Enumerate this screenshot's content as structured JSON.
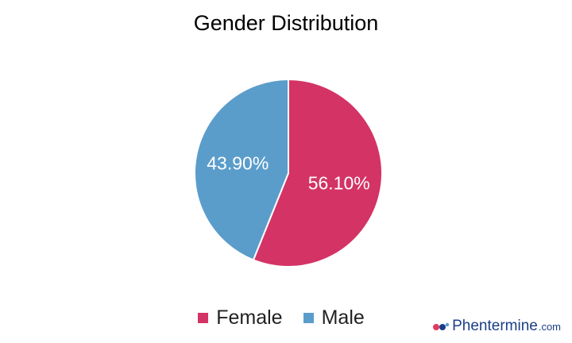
{
  "chart_data": {
    "type": "pie",
    "title": "Gender Distribution",
    "slices": [
      {
        "label": "Female",
        "value": 56.1,
        "display": "56.10%",
        "color": "#d43366"
      },
      {
        "label": "Male",
        "value": 43.9,
        "display": "43.90%",
        "color": "#5a9dcb"
      }
    ],
    "legend_position": "bottom"
  },
  "watermark": {
    "brand": "Phentermine",
    "suffix": ".com",
    "colors": {
      "brand": "#1a3e86",
      "accent": "#e03a5f"
    }
  }
}
